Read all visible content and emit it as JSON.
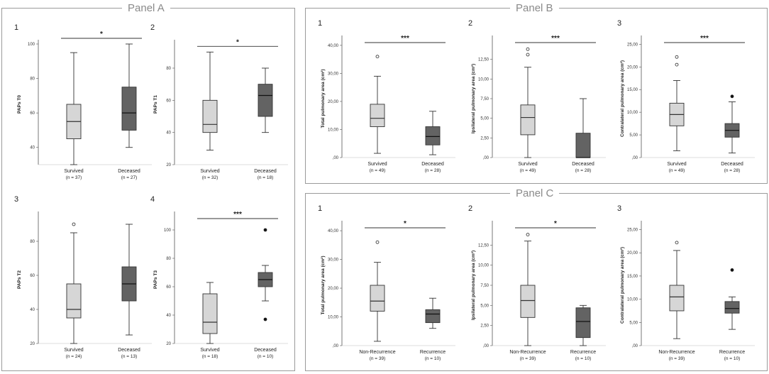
{
  "panels": {
    "A": {
      "title": "Panel A"
    },
    "B": {
      "title": "Panel B"
    },
    "C": {
      "title": "Panel C"
    }
  },
  "colors": {
    "light_box": "#d6d6d6",
    "dark_box": "#636363",
    "stroke": "#333333"
  },
  "chart_data": [
    {
      "panel": "A",
      "sublabel": "1",
      "type": "boxplot",
      "ylabel": "PAPs T0",
      "yticks": [
        {
          "v": 40,
          "t": "40"
        },
        {
          "v": 60,
          "t": "60"
        },
        {
          "v": 80,
          "t": "80"
        },
        {
          "v": 100,
          "t": "100"
        }
      ],
      "ylim": [
        30,
        100
      ],
      "significance": "*",
      "groups": [
        {
          "name": "Survived",
          "n": "(n = 37)",
          "shade": "light",
          "min": 30,
          "q1": 45,
          "median": 55,
          "q3": 65,
          "max": 95,
          "outliers": []
        },
        {
          "name": "Deceased",
          "n": "(n = 27)",
          "shade": "dark",
          "min": 40,
          "q1": 50,
          "median": 60,
          "q3": 75,
          "max": 100,
          "outliers": []
        }
      ]
    },
    {
      "panel": "A",
      "sublabel": "2",
      "type": "boxplot",
      "ylabel": "PAPs T1",
      "yticks": [
        {
          "v": 20,
          "t": "20"
        },
        {
          "v": 40,
          "t": "40"
        },
        {
          "v": 60,
          "t": "60"
        },
        {
          "v": 80,
          "t": "80"
        }
      ],
      "ylim": [
        20,
        95
      ],
      "significance": "*",
      "groups": [
        {
          "name": "Survived",
          "n": "(n = 32)",
          "shade": "light",
          "min": 29,
          "q1": 40,
          "median": 45,
          "q3": 60,
          "max": 90,
          "outliers": []
        },
        {
          "name": "Deceased",
          "n": "(n = 18)",
          "shade": "dark",
          "min": 40,
          "q1": 50,
          "median": 63,
          "q3": 70,
          "max": 80,
          "outliers": []
        }
      ]
    },
    {
      "panel": "A",
      "sublabel": "3",
      "type": "boxplot",
      "ylabel": "PAPs T2",
      "yticks": [
        {
          "v": 20,
          "t": "20"
        },
        {
          "v": 40,
          "t": "40"
        },
        {
          "v": 60,
          "t": "60"
        },
        {
          "v": 80,
          "t": "80"
        }
      ],
      "ylim": [
        20,
        95
      ],
      "significance": "",
      "groups": [
        {
          "name": "Survived",
          "n": "(n = 24)",
          "shade": "light",
          "min": 20,
          "q1": 35,
          "median": 40,
          "q3": 55,
          "max": 85,
          "outliers": [
            {
              "v": 90,
              "filled": false
            }
          ]
        },
        {
          "name": "Deceased",
          "n": "(n = 13)",
          "shade": "dark",
          "min": 25,
          "q1": 45,
          "median": 55,
          "q3": 65,
          "max": 90,
          "outliers": []
        }
      ]
    },
    {
      "panel": "A",
      "sublabel": "4",
      "type": "boxplot",
      "ylabel": "PAPs T3",
      "yticks": [
        {
          "v": 20,
          "t": "20"
        },
        {
          "v": 40,
          "t": "40"
        },
        {
          "v": 60,
          "t": "60"
        },
        {
          "v": 80,
          "t": "80"
        },
        {
          "v": 100,
          "t": "100"
        }
      ],
      "ylim": [
        20,
        110
      ],
      "significance": "***",
      "groups": [
        {
          "name": "Survived",
          "n": "(n = 18)",
          "shade": "light",
          "min": 20,
          "q1": 27,
          "median": 35,
          "q3": 55,
          "max": 63,
          "outliers": []
        },
        {
          "name": "Deceased",
          "n": "(n = 10)",
          "shade": "dark",
          "min": 50,
          "q1": 60,
          "median": 65,
          "q3": 70,
          "max": 75,
          "outliers": [
            {
              "v": 100,
              "filled": true
            },
            {
              "v": 37,
              "filled": true
            }
          ]
        }
      ]
    },
    {
      "panel": "B",
      "sublabel": "1",
      "type": "boxplot",
      "ylabel": "Total pulmonary area (cm²)",
      "yticks": [
        {
          "v": 0,
          "t": ",00"
        },
        {
          "v": 10,
          "t": "10,00"
        },
        {
          "v": 20,
          "t": "20,00"
        },
        {
          "v": 30,
          "t": "30,00"
        },
        {
          "v": 40,
          "t": "40,00"
        }
      ],
      "ylim": [
        0,
        42
      ],
      "significance": "***",
      "groups": [
        {
          "name": "Survived",
          "n": "(n = 49)",
          "shade": "light",
          "min": 1.5,
          "q1": 11,
          "median": 14,
          "q3": 19,
          "max": 29,
          "outliers": [
            {
              "v": 36,
              "filled": false
            }
          ]
        },
        {
          "name": "Deceased",
          "n": "(n = 28)",
          "shade": "dark",
          "min": 1,
          "q1": 4.5,
          "median": 7.5,
          "q3": 11,
          "max": 16.5,
          "outliers": []
        }
      ]
    },
    {
      "panel": "B",
      "sublabel": "2",
      "type": "boxplot",
      "ylabel": "Ipsilateral pulmonary area (cm²)",
      "yticks": [
        {
          "v": 0,
          "t": ",00"
        },
        {
          "v": 2.5,
          "t": "2,50"
        },
        {
          "v": 5,
          "t": "5,00"
        },
        {
          "v": 7.5,
          "t": "7,50"
        },
        {
          "v": 10,
          "t": "10,00"
        },
        {
          "v": 12.5,
          "t": "12,50"
        }
      ],
      "ylim": [
        0,
        15
      ],
      "significance": "***",
      "groups": [
        {
          "name": "Survived",
          "n": "(n = 49)",
          "shade": "light",
          "min": 0,
          "q1": 2.9,
          "median": 5.1,
          "q3": 6.7,
          "max": 11.5,
          "outliers": [
            {
              "v": 13.1,
              "filled": false
            },
            {
              "v": 13.8,
              "filled": false
            }
          ]
        },
        {
          "name": "Deceased",
          "n": "(n = 28)",
          "shade": "dark",
          "min": 0,
          "q1": 0,
          "median": 0,
          "q3": 3.1,
          "max": 7.5,
          "outliers": []
        }
      ]
    },
    {
      "panel": "B",
      "sublabel": "3",
      "type": "boxplot",
      "ylabel": "Contralateral pulmonary area (cm²)",
      "yticks": [
        {
          "v": 0,
          "t": ",00"
        },
        {
          "v": 5,
          "t": "5,00"
        },
        {
          "v": 10,
          "t": "10,00"
        },
        {
          "v": 15,
          "t": "15,00"
        },
        {
          "v": 20,
          "t": "20,00"
        },
        {
          "v": 25,
          "t": "25,00"
        }
      ],
      "ylim": [
        0,
        26
      ],
      "significance": "***",
      "groups": [
        {
          "name": "Survived",
          "n": "(n = 49)",
          "shade": "light",
          "min": 1.5,
          "q1": 7,
          "median": 9.5,
          "q3": 12,
          "max": 17,
          "outliers": [
            {
              "v": 20.5,
              "filled": false
            },
            {
              "v": 22.2,
              "filled": false
            }
          ]
        },
        {
          "name": "Deceased",
          "n": "(n = 28)",
          "shade": "dark",
          "min": 1,
          "q1": 4.5,
          "median": 6,
          "q3": 7.5,
          "max": 12.3,
          "outliers": [
            {
              "v": 13.5,
              "filled": true
            }
          ]
        }
      ]
    },
    {
      "panel": "C",
      "sublabel": "1",
      "type": "boxplot",
      "ylabel": "Total pulmonary area (cm²)",
      "yticks": [
        {
          "v": 0,
          "t": ",00"
        },
        {
          "v": 10,
          "t": "10,00"
        },
        {
          "v": 20,
          "t": "20,00"
        },
        {
          "v": 30,
          "t": "30,00"
        },
        {
          "v": 40,
          "t": "40,00"
        }
      ],
      "ylim": [
        0,
        42
      ],
      "significance": "*",
      "groups": [
        {
          "name": "Non-Recurrence",
          "n": "(n = 39)",
          "shade": "light",
          "min": 1.5,
          "q1": 12,
          "median": 15.5,
          "q3": 21,
          "max": 29,
          "outliers": [
            {
              "v": 36,
              "filled": false
            }
          ]
        },
        {
          "name": "Recurrence",
          "n": "(n = 10)",
          "shade": "dark",
          "min": 6,
          "q1": 8,
          "median": 11,
          "q3": 12.5,
          "max": 16.5,
          "outliers": []
        }
      ]
    },
    {
      "panel": "C",
      "sublabel": "2",
      "type": "boxplot",
      "ylabel": "Ipsilateral pulmonary area (cm²)",
      "yticks": [
        {
          "v": 0,
          "t": ",00"
        },
        {
          "v": 2.5,
          "t": "2,50"
        },
        {
          "v": 5,
          "t": "5,00"
        },
        {
          "v": 7.5,
          "t": "7,50"
        },
        {
          "v": 10,
          "t": "10,00"
        },
        {
          "v": 12.5,
          "t": "12,50"
        }
      ],
      "ylim": [
        0,
        15
      ],
      "significance": "*",
      "groups": [
        {
          "name": "Non-Recurrence",
          "n": "(n = 39)",
          "shade": "light",
          "min": 0,
          "q1": 3.5,
          "median": 5.6,
          "q3": 7.5,
          "max": 13,
          "outliers": [
            {
              "v": 13.8,
              "filled": false
            }
          ]
        },
        {
          "name": "Recurrence",
          "n": "(n = 10)",
          "shade": "dark",
          "min": 0,
          "q1": 1,
          "median": 3,
          "q3": 4.7,
          "max": 5,
          "outliers": []
        }
      ]
    },
    {
      "panel": "C",
      "sublabel": "3",
      "type": "boxplot",
      "ylabel": "Contralateral pulmonary area (cm²)",
      "yticks": [
        {
          "v": 0,
          "t": ",00"
        },
        {
          "v": 5,
          "t": "5,00"
        },
        {
          "v": 10,
          "t": "10,00"
        },
        {
          "v": 15,
          "t": "15,00"
        },
        {
          "v": 20,
          "t": "20,00"
        },
        {
          "v": 25,
          "t": "25,00"
        }
      ],
      "ylim": [
        0,
        26
      ],
      "significance": "",
      "groups": [
        {
          "name": "Non-Recurrence",
          "n": "(n = 39)",
          "shade": "light",
          "min": 1.5,
          "q1": 7.5,
          "median": 10.5,
          "q3": 13,
          "max": 20.5,
          "outliers": [
            {
              "v": 22.2,
              "filled": false
            }
          ]
        },
        {
          "name": "Recurrence",
          "n": "(n = 10)",
          "shade": "dark",
          "min": 3.5,
          "q1": 7,
          "median": 8,
          "q3": 9.5,
          "max": 10.5,
          "outliers": [
            {
              "v": 16.3,
              "filled": true
            }
          ]
        }
      ]
    }
  ]
}
